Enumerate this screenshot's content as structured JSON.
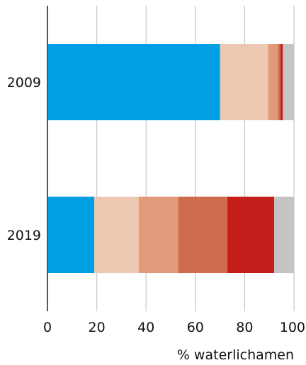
{
  "chart_data": {
    "type": "bar",
    "orientation": "horizontal",
    "stacked": true,
    "categories": [
      "2009",
      "2019"
    ],
    "series": [
      {
        "values": [
          70,
          19
        ],
        "color": "#009fe3"
      },
      {
        "values": [
          19.5,
          18
        ],
        "color": "#ecc8b2"
      },
      {
        "values": [
          4,
          16
        ],
        "color": "#e19b7b"
      },
      {
        "values": [
          1,
          20
        ],
        "color": "#d06c4e"
      },
      {
        "values": [
          1,
          19
        ],
        "color": "#c41f1a"
      },
      {
        "values": [
          4.5,
          8
        ],
        "color": "#c4c4c4"
      }
    ],
    "xticks": [
      "0",
      "20",
      "40",
      "60",
      "80",
      "100"
    ],
    "xlim": [
      0,
      100
    ],
    "xlabel": "% waterlichamen",
    "grid": true,
    "grid_color": "#c8c8c8",
    "axis_color": "#555555"
  }
}
